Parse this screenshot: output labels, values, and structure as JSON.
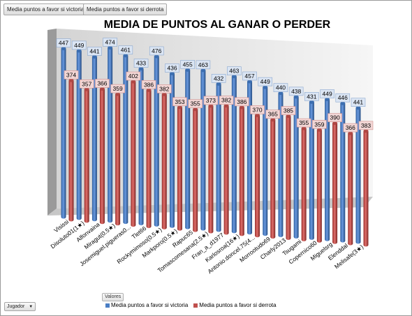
{
  "fields": {
    "filter1": "Media puntos a favor si victoria",
    "filter2": "Media puntos a favor si derrota",
    "values_button": "Valores",
    "row_field": "Jugador",
    "dropdown_arrow": "▼"
  },
  "colors": {
    "win": "#4a7ec4",
    "loss": "#c0504d",
    "win_label_bg": "#dbe5f3",
    "loss_label_bg": "#f2d6d5"
  },
  "chart_data": {
    "type": "bar",
    "title": "MEDIA DE PUNTOS AL GANAR O PERDER",
    "categories": [
      "Visissi",
      "Disoluto01(1★)",
      "Alfonvaina",
      "Miragut(0.5★)",
      "Josemiguel.pigueras0...",
      "Tlet66",
      "Rockymimoso(0.5★)",
      "Markporo(0.5★)",
      "Rapuc65",
      "Tomascomesana(2.5★)",
      "Fran_a_d1977",
      "Karlosroa(16★)",
      "Antonio.doncel.75(4...",
      "Morrootudo69",
      "Charly2013",
      "Tsugami",
      "Copernico60",
      "Miguelsrg",
      "Elenddal",
      "Melisafe(3★)"
    ],
    "series": [
      {
        "name": "Media puntos a favor si victoria",
        "values": [
          447,
          449,
          441,
          474,
          461,
          433,
          476,
          436,
          455,
          463,
          432,
          463,
          457,
          449,
          440,
          438,
          431,
          449,
          446,
          441
        ]
      },
      {
        "name": "Media puntos a favor si derrota",
        "values": [
          374,
          357,
          366,
          359,
          402,
          386,
          382,
          353,
          355,
          373,
          382,
          386,
          370,
          365,
          385,
          355,
          359,
          390,
          366,
          383
        ]
      }
    ],
    "ylim": [
      0,
      500
    ],
    "grid": false,
    "legend": "bottom"
  }
}
